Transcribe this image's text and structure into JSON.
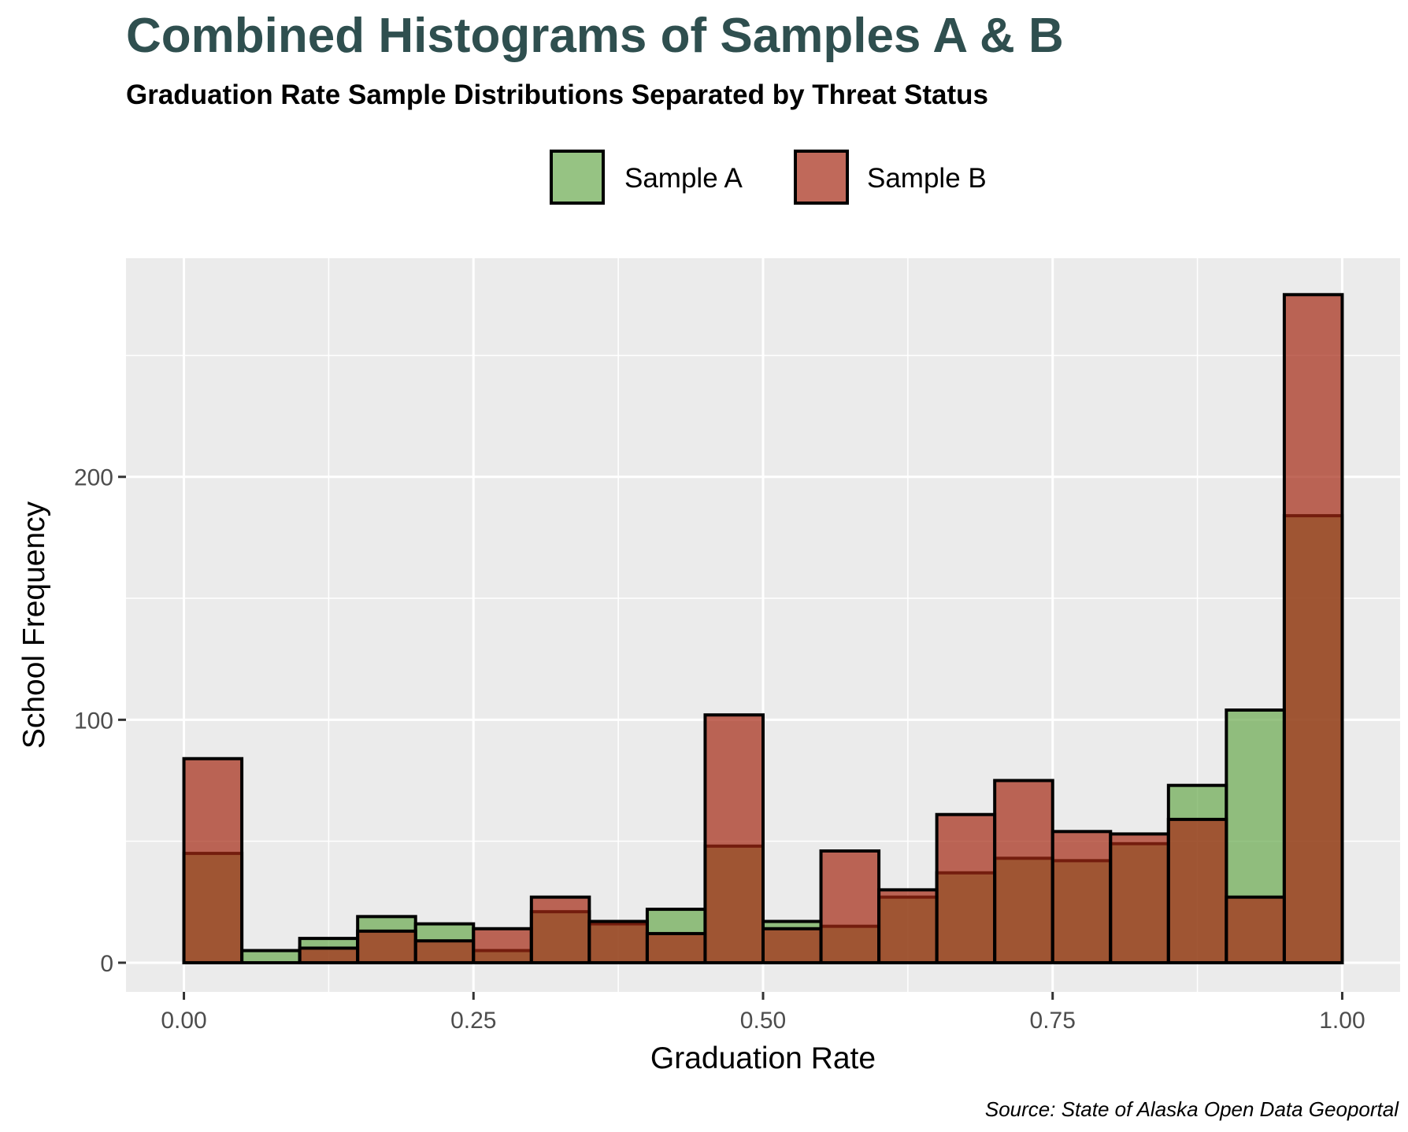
{
  "chart_data": {
    "type": "bar",
    "title": "Combined Histograms of Samples A & B",
    "subtitle": "Graduation Rate Sample Distributions Separated by Threat Status",
    "xlabel": "Graduation Rate",
    "ylabel": "School Frequency",
    "caption": "Source: State of Alaska Open Data Geoportal",
    "xlim": [
      -0.05,
      1.05
    ],
    "ylim": [
      -12,
      290
    ],
    "x_ticks": [
      0.0,
      0.25,
      0.5,
      0.75,
      1.0
    ],
    "x_tick_labels": [
      "0.00",
      "0.25",
      "0.50",
      "0.75",
      "1.00"
    ],
    "y_ticks": [
      0,
      100,
      200
    ],
    "y_tick_labels": [
      "0",
      "100",
      "200"
    ],
    "grid": true,
    "legend_position": "top",
    "bin_width": 0.05,
    "bin_starts": [
      0.0,
      0.05,
      0.1,
      0.15,
      0.2,
      0.25,
      0.3,
      0.35,
      0.4,
      0.45,
      0.5,
      0.55,
      0.6,
      0.65,
      0.7,
      0.75,
      0.8,
      0.85,
      0.9,
      0.95
    ],
    "series": [
      {
        "name": "Sample A",
        "color": "#6aaa4f",
        "values": [
          45,
          5,
          10,
          19,
          16,
          5,
          21,
          16,
          22,
          48,
          17,
          15,
          27,
          37,
          43,
          42,
          49,
          73,
          104,
          184
        ]
      },
      {
        "name": "Sample B",
        "color": "#a52a14",
        "values": [
          84,
          0,
          6,
          13,
          9,
          14,
          27,
          17,
          12,
          102,
          14,
          46,
          30,
          61,
          75,
          54,
          53,
          59,
          27,
          275
        ]
      }
    ]
  }
}
